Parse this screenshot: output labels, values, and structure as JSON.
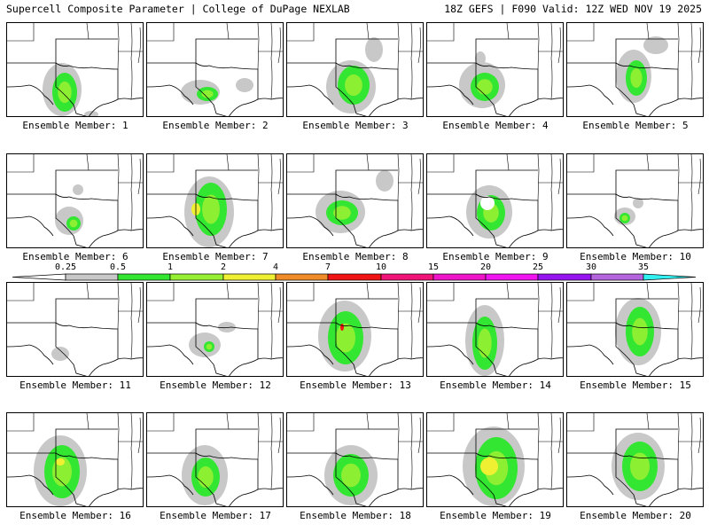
{
  "header": {
    "left": "Supercell Composite Parameter | College of DuPage NEXLAB",
    "right": "18Z GEFS | F090 Valid: 12Z WED NOV 19 2025"
  },
  "legend": {
    "ticks": [
      "0.25",
      "0.5",
      "1",
      "2",
      "4",
      "7",
      "10",
      "15",
      "20",
      "25",
      "30",
      "35"
    ],
    "colors": [
      "#c8c8c8",
      "#32e632",
      "#96f032",
      "#f0f032",
      "#f08c28",
      "#f01414",
      "#f01478",
      "#f014c8",
      "#f014f0",
      "#9614f0",
      "#b464dc",
      "#32f0f0"
    ]
  },
  "panels": [
    {
      "label": "Ensemble Member: 1"
    },
    {
      "label": "Ensemble Member: 2"
    },
    {
      "label": "Ensemble Member: 3"
    },
    {
      "label": "Ensemble Member: 4"
    },
    {
      "label": "Ensemble Member: 5"
    },
    {
      "label": "Ensemble Member: 6"
    },
    {
      "label": "Ensemble Member: 7"
    },
    {
      "label": "Ensemble Member: 8"
    },
    {
      "label": "Ensemble Member: 9"
    },
    {
      "label": "Ensemble Member: 10"
    },
    {
      "label": "Ensemble Member: 11"
    },
    {
      "label": "Ensemble Member: 12"
    },
    {
      "label": "Ensemble Member: 13"
    },
    {
      "label": "Ensemble Member: 14"
    },
    {
      "label": "Ensemble Member: 15"
    },
    {
      "label": "Ensemble Member: 16"
    },
    {
      "label": "Ensemble Member: 17"
    },
    {
      "label": "Ensemble Member: 18"
    },
    {
      "label": "Ensemble Member: 19"
    },
    {
      "label": "Ensemble Member: 20"
    }
  ]
}
